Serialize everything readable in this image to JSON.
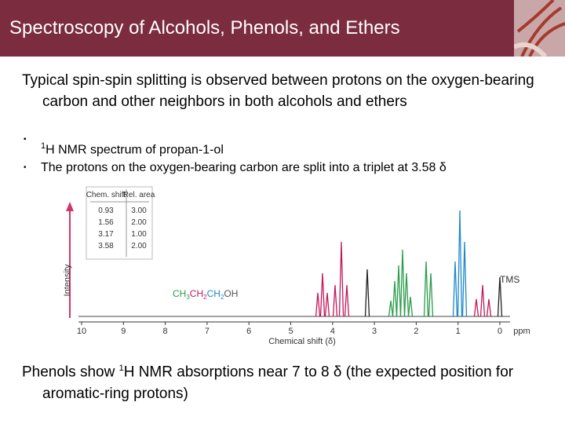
{
  "header": {
    "title": "Spectroscopy of Alcohols, Phenols, and Ethers"
  },
  "body": {
    "intro": "Typical spin-spin splitting is observed between protons on the oxygen-bearing carbon and other neighbors in both alcohols and ethers",
    "bullets": [
      {
        "sup": "1",
        "text": "H NMR spectrum of propan-1-ol"
      },
      {
        "text": "The protons on the oxygen-bearing carbon are split into a triplet at 3.58 δ"
      }
    ],
    "conclusion": {
      "before": "Phenols show ",
      "sup": "1",
      "after": "H NMR absorptions near 7 to 8 δ (the expected position for aromatic-ring protons)"
    }
  },
  "figure": {
    "table": {
      "header": [
        "Chem. shift",
        "Rel. area"
      ],
      "rows": [
        [
          "0.93",
          "3.00"
        ],
        [
          "1.56",
          "2.00"
        ],
        [
          "3.17",
          "1.00"
        ],
        [
          "3.58",
          "2.00"
        ]
      ]
    },
    "y_label": "Intensity",
    "x_label": "Chemical shift (δ)",
    "x_ticks": [
      "10",
      "9",
      "8",
      "7",
      "6",
      "5",
      "4",
      "3",
      "2",
      "1",
      "0"
    ],
    "x_unit": "ppm",
    "compound": [
      "CH",
      "3",
      "CH",
      "2",
      "CH",
      "2",
      "OH"
    ],
    "reference": "TMS"
  }
}
